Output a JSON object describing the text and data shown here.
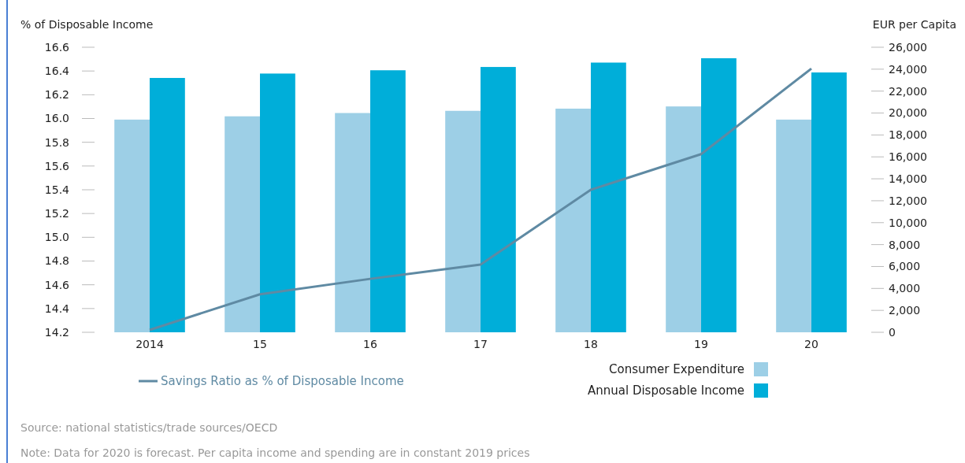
{
  "chart_data": {
    "type": "bar",
    "ylabel": "% of Disposable Income",
    "y2label": "EUR per Capita",
    "categories": [
      "2014",
      "15",
      "16",
      "17",
      "18",
      "19",
      "20"
    ],
    "series": [
      {
        "name": "Consumer Expenditure",
        "axis": "y2",
        "color": "#9dcfe6",
        "values": [
          19400,
          19700,
          20000,
          20200,
          20400,
          20600,
          19400
        ]
      },
      {
        "name": "Annual Disposable Income",
        "axis": "y2",
        "color": "#00aed9",
        "values": [
          23200,
          23600,
          23900,
          24200,
          24600,
          25000,
          23700
        ]
      },
      {
        "name": "Savings Ratio as % of Disposable Income",
        "type": "line",
        "color": "#5f8aa3",
        "values": [
          14.22,
          14.52,
          14.65,
          14.77,
          15.4,
          15.7,
          16.42
        ]
      }
    ],
    "ylim": [
      14.2,
      16.6
    ],
    "yticks": [
      {
        "value": 14.2,
        "label": "14.2"
      },
      {
        "value": 14.4,
        "label": "14.4"
      },
      {
        "value": 14.6,
        "label": "14.6"
      },
      {
        "value": 14.8,
        "label": "14.8"
      },
      {
        "value": 15,
        "label": "15.0"
      },
      {
        "value": 15.2,
        "label": "15.2"
      },
      {
        "value": 15.4,
        "label": "15.4"
      },
      {
        "value": 15.6,
        "label": "15.6"
      },
      {
        "value": 15.8,
        "label": "15.8"
      },
      {
        "value": 16,
        "label": "16.0"
      },
      {
        "value": 16.2,
        "label": "16.2"
      },
      {
        "value": 16.4,
        "label": "16.4"
      },
      {
        "value": 16.6,
        "label": "16.6"
      }
    ],
    "y2lim": [
      0,
      26000
    ],
    "y2ticks": [
      0,
      {
        "value": 2000,
        "label": "2,000"
      },
      {
        "value": 4000,
        "label": "4,000"
      },
      {
        "value": 6000,
        "label": "6,000"
      },
      {
        "value": 8000,
        "label": "8,000"
      },
      {
        "value": 10000,
        "label": "10,000"
      },
      {
        "value": 12000,
        "label": "12,000"
      },
      {
        "value": 14000,
        "label": "14,000"
      },
      {
        "value": 16000,
        "label": "16,000"
      },
      {
        "value": 18000,
        "label": "18,000"
      },
      {
        "value": 20000,
        "label": "20,000"
      },
      {
        "value": 22000,
        "label": "22,000"
      },
      {
        "value": 24000,
        "label": "24,000"
      },
      {
        "value": 26000,
        "label": "26,000"
      }
    ],
    "grid": false,
    "legend": "bottom",
    "marker": "none",
    "line_style": "solid",
    "annotations": [
      "Source: national statistics/trade sources/OECD",
      "Note: Data for 2020 is forecast. Per capita income and spending are in constant 2019 prices"
    ]
  }
}
